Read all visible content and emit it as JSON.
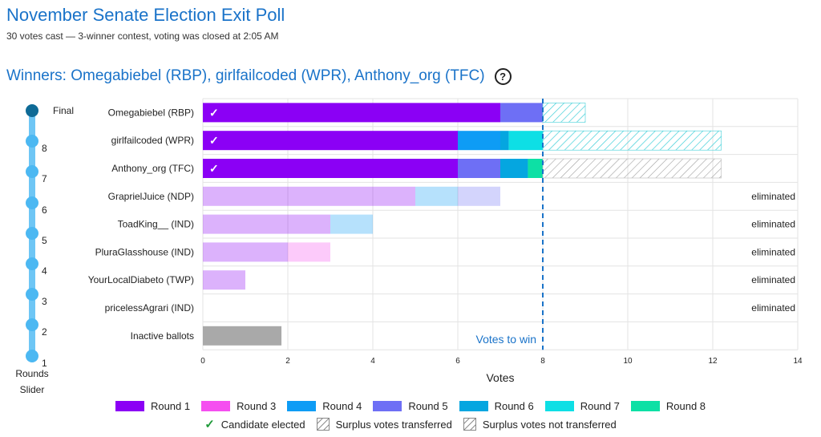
{
  "header": {
    "title": "November Senate Election Exit Poll",
    "subtitle": "30 votes cast — 3-winner contest, voting was closed at 2:05 AM",
    "winners": "Winners: Omegabiebel (RBP), girlfailcoded (WPR), Anthony_org (TFC)",
    "help_icon_glyph": "?"
  },
  "slider": {
    "stops": [
      "Final",
      "8",
      "7",
      "6",
      "5",
      "4",
      "3",
      "2",
      "1"
    ],
    "selected": "Final",
    "caption_line1": "Rounds",
    "caption_line2": "Slider"
  },
  "colors": {
    "round_1": "#8b00f5",
    "round_3": "#f54ff0",
    "round_4": "#0e9cf5",
    "round_5": "#6e6ff5",
    "round_6": "#05a6e0",
    "round_7": "#0edfe5",
    "round_8": "#0de0a5",
    "inactive": "#a9a9a9",
    "threshold": "#1a73c9",
    "surplus_transferred": "#3fcfd8",
    "surplus_not_transferred": "#b0b0b0",
    "elected_check": "#ffffff"
  },
  "chart_data": {
    "type": "bar",
    "orientation": "horizontal",
    "stacked": true,
    "xlabel": "Votes",
    "xlim": [
      0,
      14
    ],
    "xticks": [
      0,
      2,
      4,
      6,
      8,
      10,
      12,
      14
    ],
    "threshold": {
      "value": 8,
      "label": "Votes to win"
    },
    "grid": true,
    "legend_position": "bottom",
    "rows": [
      {
        "name": "Omegabiebel (RBP)",
        "elected": true,
        "status": "",
        "segments": [
          {
            "round": 1,
            "value": 7
          },
          {
            "round": 5,
            "value": 1
          }
        ],
        "surplus": {
          "kind": "transferred",
          "value": 1
        }
      },
      {
        "name": "girlfailcoded (WPR)",
        "elected": true,
        "status": "",
        "segments": [
          {
            "round": 1,
            "value": 6
          },
          {
            "round": 4,
            "value": 1
          },
          {
            "round": 6,
            "value": 0.2
          },
          {
            "round": 7,
            "value": 0.8
          }
        ],
        "surplus": {
          "kind": "transferred",
          "value": 4.2
        }
      },
      {
        "name": "Anthony_org (TFC)",
        "elected": true,
        "status": "",
        "segments": [
          {
            "round": 1,
            "value": 6
          },
          {
            "round": 5,
            "value": 1
          },
          {
            "round": 6,
            "value": 0.65
          },
          {
            "round": 8,
            "value": 0.35
          }
        ],
        "surplus": {
          "kind": "not_transferred",
          "value": 4.2
        }
      },
      {
        "name": "GraprielJuice (NDP)",
        "elected": false,
        "status": "eliminated",
        "segments": [
          {
            "round": 1,
            "value": 5
          },
          {
            "round": 4,
            "value": 1
          },
          {
            "round": 5,
            "value": 1
          }
        ]
      },
      {
        "name": "ToadKing__ (IND)",
        "elected": false,
        "status": "eliminated",
        "segments": [
          {
            "round": 1,
            "value": 3
          },
          {
            "round": 4,
            "value": 1
          }
        ]
      },
      {
        "name": "PluraGlasshouse (IND)",
        "elected": false,
        "status": "eliminated",
        "segments": [
          {
            "round": 1,
            "value": 2
          },
          {
            "round": 3,
            "value": 1
          }
        ]
      },
      {
        "name": "YourLocalDiabeto (TWP)",
        "elected": false,
        "status": "eliminated",
        "segments": [
          {
            "round": 1,
            "value": 1
          }
        ]
      },
      {
        "name": "pricelessAgrari (IND)",
        "elected": false,
        "status": "eliminated",
        "segments": []
      },
      {
        "name": "Inactive ballots",
        "elected": false,
        "status": "",
        "inactive": true,
        "segments": [
          {
            "round": 0,
            "value": 1.85
          }
        ]
      }
    ]
  },
  "legend": {
    "rounds": [
      {
        "label": "Round 1",
        "color": "#8b00f5"
      },
      {
        "label": "Round 3",
        "color": "#f54ff0"
      },
      {
        "label": "Round 4",
        "color": "#0e9cf5"
      },
      {
        "label": "Round 5",
        "color": "#6e6ff5"
      },
      {
        "label": "Round 6",
        "color": "#05a6e0"
      },
      {
        "label": "Round 7",
        "color": "#0edfe5"
      },
      {
        "label": "Round 8",
        "color": "#0de0a5"
      }
    ],
    "elected_label": "Candidate elected",
    "elected_glyph": "✓",
    "surplus_transferred_label": "Surplus votes transferred",
    "surplus_not_transferred_label": "Surplus votes not transferred"
  }
}
